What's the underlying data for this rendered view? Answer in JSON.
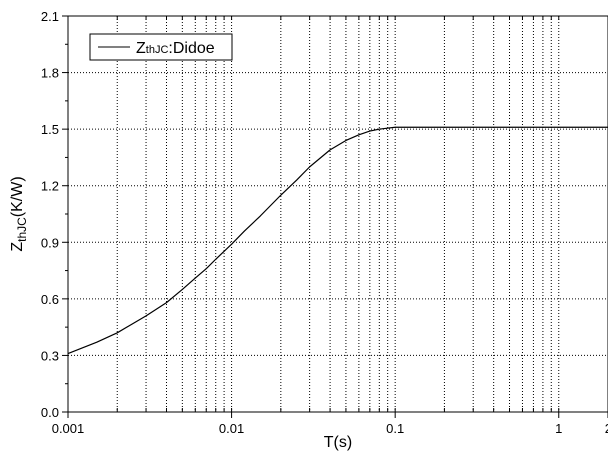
{
  "chart_data": {
    "type": "line",
    "xlabel": "T(s)",
    "ylabel": {
      "main": "Z",
      "sub": "thJC",
      "unit": "(K/W)"
    },
    "x_scale": "log",
    "xlim": [
      0.001,
      2
    ],
    "ylim": [
      0.0,
      2.1
    ],
    "x_ticks": [
      {
        "value": 0.001,
        "label": "0.001"
      },
      {
        "value": 0.01,
        "label": "0.01"
      },
      {
        "value": 0.1,
        "label": "0.1"
      },
      {
        "value": 1,
        "label": "1"
      },
      {
        "value": 2,
        "label": "2"
      }
    ],
    "y_ticks": [
      {
        "value": 0.0,
        "label": "0.0"
      },
      {
        "value": 0.3,
        "label": "0.3"
      },
      {
        "value": 0.6,
        "label": "0.6"
      },
      {
        "value": 0.9,
        "label": "0.9"
      },
      {
        "value": 1.2,
        "label": "1.2"
      },
      {
        "value": 1.5,
        "label": "1.5"
      },
      {
        "value": 1.8,
        "label": "1.8"
      },
      {
        "value": 2.1,
        "label": "2.1"
      }
    ],
    "grid": true,
    "legend_position": "top-left",
    "series": [
      {
        "name_main": "Z",
        "name_sub": "thJC",
        "name_rest": ":Didoe",
        "color": "#000000",
        "x": [
          0.001,
          0.0015,
          0.002,
          0.003,
          0.004,
          0.005,
          0.006,
          0.007,
          0.008,
          0.01,
          0.012,
          0.015,
          0.02,
          0.025,
          0.03,
          0.04,
          0.05,
          0.06,
          0.07,
          0.08,
          0.1,
          0.12,
          0.15,
          0.2,
          0.3,
          0.5,
          1,
          2
        ],
        "y": [
          0.31,
          0.37,
          0.42,
          0.51,
          0.58,
          0.65,
          0.71,
          0.76,
          0.81,
          0.89,
          0.96,
          1.04,
          1.15,
          1.23,
          1.3,
          1.39,
          1.44,
          1.47,
          1.49,
          1.5,
          1.51,
          1.51,
          1.51,
          1.51,
          1.51,
          1.51,
          1.51,
          1.51
        ]
      }
    ]
  }
}
